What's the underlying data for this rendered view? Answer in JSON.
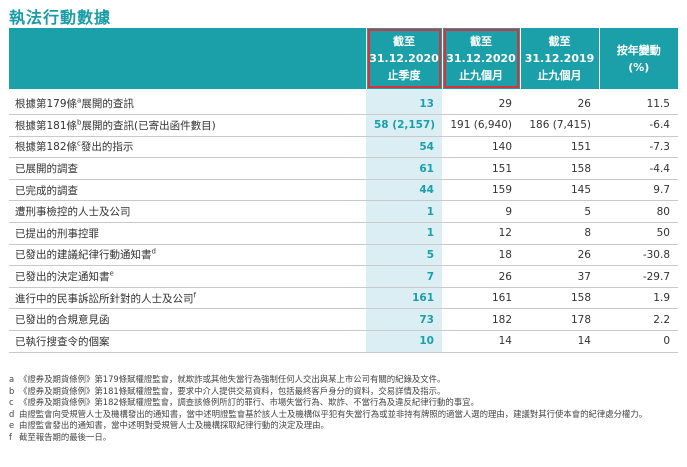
{
  "title": "執法行動數據",
  "table": {
    "headers": [
      {
        "l1": "截至",
        "l2": "31.12.2020",
        "l3": "止季度"
      },
      {
        "l1": "截至",
        "l2": "31.12.2020",
        "l3": "止九個月"
      },
      {
        "l1": "截至",
        "l2": "31.12.2019",
        "l3": "止九個月"
      },
      {
        "l1": "按年變動",
        "l2": "(%)"
      }
    ],
    "rows": [
      {
        "label": "根據第179條",
        "sup": "a",
        "label2": "展開的查訊",
        "q": "13",
        "n20": "29",
        "n19": "26",
        "chg": "11.5"
      },
      {
        "label": "根據第181條",
        "sup": "b",
        "label2": "展開的查訊(已寄出函件數目)",
        "q": "58 (2,157)",
        "n20": "191 (6,940)",
        "n19": "186 (7,415)",
        "chg": "-6.4"
      },
      {
        "label": "根據第182條",
        "sup": "c",
        "label2": "發出的指示",
        "q": "54",
        "n20": "140",
        "n19": "151",
        "chg": "-7.3"
      },
      {
        "label": "已展開的調查",
        "sup": "",
        "label2": "",
        "q": "61",
        "n20": "151",
        "n19": "158",
        "chg": "-4.4"
      },
      {
        "label": "已完成的調查",
        "sup": "",
        "label2": "",
        "q": "44",
        "n20": "159",
        "n19": "145",
        "chg": "9.7"
      },
      {
        "label": "遭刑事檢控的人士及公司",
        "sup": "",
        "label2": "",
        "q": "1",
        "n20": "9",
        "n19": "5",
        "chg": "80"
      },
      {
        "label": "已提出的刑事控罪",
        "sup": "",
        "label2": "",
        "q": "1",
        "n20": "12",
        "n19": "8",
        "chg": "50"
      },
      {
        "label": "已發出的建議紀律行動通知書",
        "sup": "d",
        "label2": "",
        "q": "5",
        "n20": "18",
        "n19": "26",
        "chg": "-30.8"
      },
      {
        "label": "已發出的決定通知書",
        "sup": "e",
        "label2": "",
        "q": "7",
        "n20": "26",
        "n19": "37",
        "chg": "-29.7"
      },
      {
        "label": "進行中的民事訴訟所針對的人士及公司",
        "sup": "f",
        "label2": "",
        "q": "161",
        "n20": "161",
        "n19": "158",
        "chg": "1.9"
      },
      {
        "label": "已發出的合規意見函",
        "sup": "",
        "label2": "",
        "q": "73",
        "n20": "182",
        "n19": "178",
        "chg": "2.2"
      },
      {
        "label": "已執行搜查令的個案",
        "sup": "",
        "label2": "",
        "q": "10",
        "n20": "14",
        "n19": "14",
        "chg": "0"
      }
    ]
  },
  "notes": [
    {
      "mark": "a",
      "text": "《證券及期貨條例》第179條賦權證監會，就欺詐或其他失當行為強制任何人交出與某上市公司有關的紀錄及文件。"
    },
    {
      "mark": "b",
      "text": "《證券及期貨條例》第181條賦權證監會，要求中介人提供交易資料，包括最終客戶身分的資料，交易詳情及指示。"
    },
    {
      "mark": "c",
      "text": "《證券及期貨條例》第182條賦權證監會，調查該條例所訂的罪行、市場失當行為、欺詐、不當行為及違反紀律行動的事宜。"
    },
    {
      "mark": "d",
      "text": "由證監會向受規管人士及機構發出的通知書，當中述明證監會基於該人士及機構似乎犯有失當行為或並非持有牌照的適當人選的理由，建議對其行使本會的紀律處分權力。"
    },
    {
      "mark": "e",
      "text": "由證監會發出的通知書，當中述明對受規管人士及機構採取紀律行動的決定及理由。"
    },
    {
      "mark": "f",
      "text": "截至報告期的最後一日。"
    }
  ],
  "colors": {
    "accent": "#1b9fa9",
    "highlight_col": "#dbeef4",
    "box": "#d9323a"
  }
}
